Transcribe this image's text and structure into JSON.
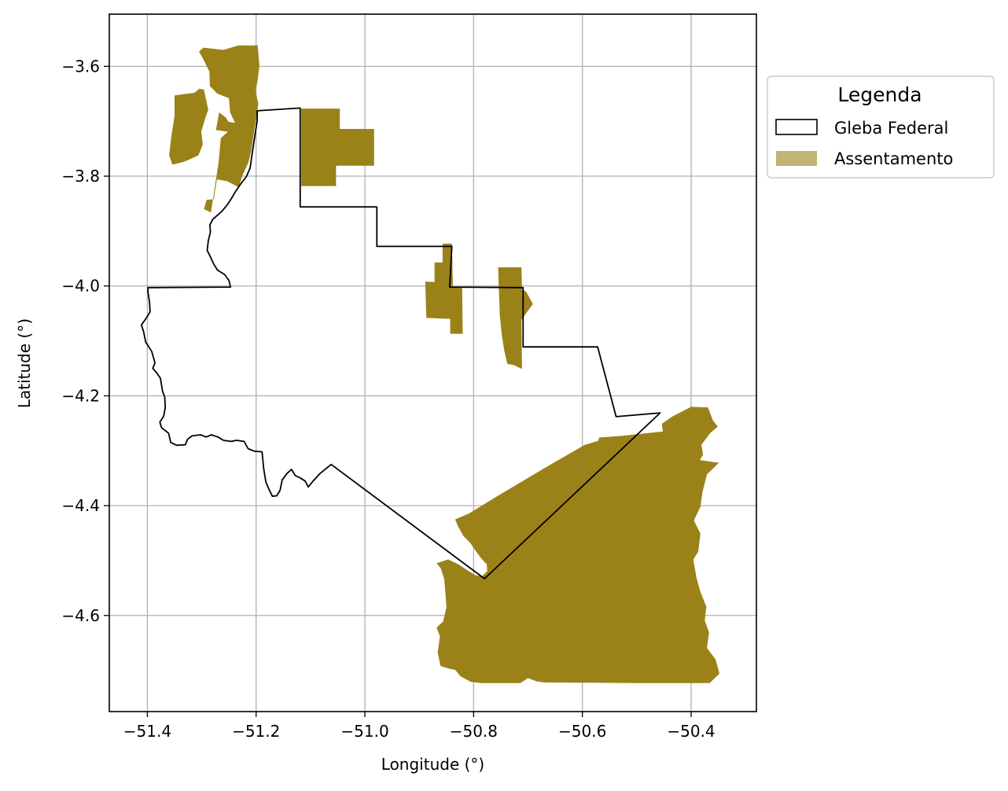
{
  "chart_data": {
    "type": "map",
    "xlabel": "Longitude (°)",
    "ylabel": "Latitude (°)",
    "xlim": [
      -51.47,
      -50.28
    ],
    "ylim": [
      -4.775,
      -3.505
    ],
    "grid": true,
    "x_ticks": [
      -51.4,
      -51.2,
      -51.0,
      -50.8,
      -50.6,
      -50.4
    ],
    "x_tick_labels": [
      "−51.4",
      "−51.2",
      "−51.0",
      "−50.8",
      "−50.6",
      "−50.4"
    ],
    "y_ticks": [
      -3.6,
      -3.8,
      -4.0,
      -4.2,
      -4.4,
      -4.6
    ],
    "y_tick_labels": [
      "−3.6",
      "−3.8",
      "−4.0",
      "−4.2",
      "−4.4",
      "−4.6"
    ],
    "legend": {
      "title": "Legenda",
      "placement": "outside-right-top",
      "entries": [
        {
          "label": "Gleba Federal",
          "style": "outline",
          "edge_color": "#000000",
          "fill_color": "none"
        },
        {
          "label": "Assentamento",
          "style": "fill",
          "fill_color": "#9a8219",
          "alpha": 0.6
        }
      ]
    },
    "layers": [
      {
        "name": "Gleba Federal",
        "style": "outline",
        "edge_color": "#000000",
        "polygons": [
          [
            [
              -51.198,
              -3.681
            ],
            [
              -51.119,
              -3.676
            ],
            [
              -51.119,
              -3.856
            ],
            [
              -50.978,
              -3.856
            ],
            [
              -50.978,
              -3.928
            ],
            [
              -50.84,
              -3.928
            ],
            [
              -50.844,
              -4.002
            ],
            [
              -50.709,
              -4.003
            ],
            [
              -50.709,
              -4.111
            ],
            [
              -50.572,
              -4.111
            ],
            [
              -50.538,
              -4.238
            ],
            [
              -50.457,
              -4.231
            ],
            [
              -50.78,
              -4.533
            ],
            [
              -51.062,
              -4.325
            ],
            [
              -51.083,
              -4.342
            ],
            [
              -51.096,
              -4.356
            ],
            [
              -51.104,
              -4.366
            ],
            [
              -51.11,
              -4.355
            ],
            [
              -51.118,
              -4.35
            ],
            [
              -51.128,
              -4.345
            ],
            [
              -51.135,
              -4.334
            ],
            [
              -51.143,
              -4.341
            ],
            [
              -51.152,
              -4.353
            ],
            [
              -51.156,
              -4.372
            ],
            [
              -51.162,
              -4.382
            ],
            [
              -51.17,
              -4.383
            ],
            [
              -51.176,
              -4.371
            ],
            [
              -51.182,
              -4.357
            ],
            [
              -51.186,
              -4.333
            ],
            [
              -51.189,
              -4.302
            ],
            [
              -51.203,
              -4.301
            ],
            [
              -51.215,
              -4.296
            ],
            [
              -51.222,
              -4.283
            ],
            [
              -51.236,
              -4.281
            ],
            [
              -51.246,
              -4.283
            ],
            [
              -51.26,
              -4.281
            ],
            [
              -51.27,
              -4.275
            ],
            [
              -51.282,
              -4.271
            ],
            [
              -51.292,
              -4.275
            ],
            [
              -51.302,
              -4.271
            ],
            [
              -51.318,
              -4.273
            ],
            [
              -51.326,
              -4.279
            ],
            [
              -51.33,
              -4.289
            ],
            [
              -51.346,
              -4.29
            ],
            [
              -51.357,
              -4.285
            ],
            [
              -51.361,
              -4.268
            ],
            [
              -51.374,
              -4.258
            ],
            [
              -51.377,
              -4.248
            ],
            [
              -51.37,
              -4.237
            ],
            [
              -51.367,
              -4.221
            ],
            [
              -51.368,
              -4.202
            ],
            [
              -51.372,
              -4.192
            ],
            [
              -51.376,
              -4.168
            ],
            [
              -51.383,
              -4.158
            ],
            [
              -51.39,
              -4.15
            ],
            [
              -51.386,
              -4.14
            ],
            [
              -51.392,
              -4.119
            ],
            [
              -51.403,
              -4.102
            ],
            [
              -51.407,
              -4.083
            ],
            [
              -51.411,
              -4.071
            ],
            [
              -51.403,
              -4.06
            ],
            [
              -51.395,
              -4.047
            ],
            [
              -51.396,
              -4.03
            ],
            [
              -51.399,
              -4.01
            ],
            [
              -51.399,
              -4.003
            ],
            [
              -51.247,
              -4.002
            ],
            [
              -51.25,
              -3.99
            ],
            [
              -51.258,
              -3.979
            ],
            [
              -51.271,
              -3.971
            ],
            [
              -51.278,
              -3.96
            ],
            [
              -51.285,
              -3.945
            ],
            [
              -51.29,
              -3.935
            ],
            [
              -51.288,
              -3.918
            ],
            [
              -51.284,
              -3.902
            ],
            [
              -51.285,
              -3.889
            ],
            [
              -51.28,
              -3.879
            ],
            [
              -51.263,
              -3.864
            ],
            [
              -51.253,
              -3.852
            ],
            [
              -51.245,
              -3.84
            ],
            [
              -51.238,
              -3.828
            ],
            [
              -51.229,
              -3.815
            ],
            [
              -51.218,
              -3.801
            ],
            [
              -51.211,
              -3.785
            ],
            [
              -51.208,
              -3.764
            ],
            [
              -51.205,
              -3.744
            ],
            [
              -51.201,
              -3.718
            ],
            [
              -51.198,
              -3.699
            ],
            [
              -51.198,
              -3.681
            ]
          ]
        ]
      },
      {
        "name": "Assentamento",
        "style": "fill",
        "fill_color": "#9a8219",
        "polygons": [
          [
            [
              -51.305,
              -3.573
            ],
            [
              -51.297,
              -3.566
            ],
            [
              -51.26,
              -3.57
            ],
            [
              -51.232,
              -3.562
            ],
            [
              -51.197,
              -3.562
            ],
            [
              -51.196,
              -3.575
            ],
            [
              -51.194,
              -3.599
            ],
            [
              -51.197,
              -3.624
            ],
            [
              -51.201,
              -3.645
            ],
            [
              -51.196,
              -3.668
            ],
            [
              -51.2,
              -3.695
            ],
            [
              -51.204,
              -3.72
            ],
            [
              -51.209,
              -3.754
            ],
            [
              -51.214,
              -3.775
            ],
            [
              -51.225,
              -3.799
            ],
            [
              -51.232,
              -3.82
            ],
            [
              -51.254,
              -3.809
            ],
            [
              -51.272,
              -3.806
            ],
            [
              -51.278,
              -3.842
            ],
            [
              -51.291,
              -3.843
            ],
            [
              -51.296,
              -3.86
            ],
            [
              -51.283,
              -3.866
            ],
            [
              -51.269,
              -3.775
            ],
            [
              -51.265,
              -3.731
            ],
            [
              -51.252,
              -3.719
            ],
            [
              -51.274,
              -3.716
            ],
            [
              -51.268,
              -3.684
            ],
            [
              -51.256,
              -3.693
            ],
            [
              -51.251,
              -3.701
            ],
            [
              -51.239,
              -3.703
            ],
            [
              -51.248,
              -3.683
            ],
            [
              -51.25,
              -3.658
            ],
            [
              -51.271,
              -3.65
            ],
            [
              -51.285,
              -3.636
            ],
            [
              -51.286,
              -3.61
            ],
            [
              -51.296,
              -3.589
            ],
            [
              -51.305,
              -3.573
            ]
          ],
          [
            [
              -51.35,
              -3.653
            ],
            [
              -51.313,
              -3.648
            ],
            [
              -51.305,
              -3.641
            ],
            [
              -51.296,
              -3.642
            ],
            [
              -51.292,
              -3.661
            ],
            [
              -51.288,
              -3.679
            ],
            [
              -51.293,
              -3.693
            ],
            [
              -51.301,
              -3.719
            ],
            [
              -51.298,
              -3.742
            ],
            [
              -51.306,
              -3.762
            ],
            [
              -51.321,
              -3.769
            ],
            [
              -51.333,
              -3.774
            ],
            [
              -51.354,
              -3.779
            ],
            [
              -51.36,
              -3.762
            ],
            [
              -51.356,
              -3.729
            ],
            [
              -51.35,
              -3.69
            ],
            [
              -51.35,
              -3.653
            ]
          ],
          [
            [
              -51.117,
              -3.677
            ],
            [
              -51.046,
              -3.677
            ],
            [
              -51.046,
              -3.714
            ],
            [
              -50.983,
              -3.714
            ],
            [
              -50.983,
              -3.781
            ],
            [
              -51.053,
              -3.781
            ],
            [
              -51.053,
              -3.818
            ],
            [
              -51.117,
              -3.818
            ],
            [
              -51.117,
              -3.677
            ]
          ],
          [
            [
              -50.857,
              -3.923
            ],
            [
              -50.84,
              -3.923
            ],
            [
              -50.838,
              -4.003
            ],
            [
              -50.821,
              -4.003
            ],
            [
              -50.82,
              -4.087
            ],
            [
              -50.843,
              -4.087
            ],
            [
              -50.843,
              -4.06
            ],
            [
              -50.887,
              -4.058
            ],
            [
              -50.889,
              -3.992
            ],
            [
              -50.872,
              -3.993
            ],
            [
              -50.872,
              -3.957
            ],
            [
              -50.857,
              -3.957
            ],
            [
              -50.857,
              -3.923
            ]
          ],
          [
            [
              -50.755,
              -3.966
            ],
            [
              -50.712,
              -3.966
            ],
            [
              -50.711,
              -4.006
            ],
            [
              -50.703,
              -4.011
            ],
            [
              -50.691,
              -4.033
            ],
            [
              -50.7,
              -4.045
            ],
            [
              -50.712,
              -4.062
            ],
            [
              -50.711,
              -4.151
            ],
            [
              -50.726,
              -4.144
            ],
            [
              -50.738,
              -4.142
            ],
            [
              -50.744,
              -4.116
            ],
            [
              -50.748,
              -4.09
            ],
            [
              -50.752,
              -4.053
            ],
            [
              -50.755,
              -3.966
            ]
          ],
          [
            [
              -50.868,
              -4.505
            ],
            [
              -50.86,
              -4.515
            ],
            [
              -50.854,
              -4.534
            ],
            [
              -50.852,
              -4.558
            ],
            [
              -50.85,
              -4.585
            ],
            [
              -50.856,
              -4.611
            ],
            [
              -50.868,
              -4.622
            ],
            [
              -50.862,
              -4.638
            ],
            [
              -50.866,
              -4.667
            ],
            [
              -50.861,
              -4.692
            ],
            [
              -50.845,
              -4.697
            ],
            [
              -50.834,
              -4.699
            ],
            [
              -50.824,
              -4.711
            ],
            [
              -50.805,
              -4.721
            ],
            [
              -50.785,
              -4.723
            ],
            [
              -50.74,
              -4.723
            ],
            [
              -50.714,
              -4.723
            ],
            [
              -50.7,
              -4.714
            ],
            [
              -50.684,
              -4.72
            ],
            [
              -50.67,
              -4.722
            ],
            [
              -50.5,
              -4.723
            ],
            [
              -50.366,
              -4.723
            ],
            [
              -50.348,
              -4.706
            ],
            [
              -50.355,
              -4.68
            ],
            [
              -50.371,
              -4.659
            ],
            [
              -50.367,
              -4.631
            ],
            [
              -50.375,
              -4.609
            ],
            [
              -50.372,
              -4.584
            ],
            [
              -50.383,
              -4.557
            ],
            [
              -50.39,
              -4.532
            ],
            [
              -50.396,
              -4.498
            ],
            [
              -50.387,
              -4.484
            ],
            [
              -50.383,
              -4.451
            ],
            [
              -50.395,
              -4.427
            ],
            [
              -50.383,
              -4.402
            ],
            [
              -50.379,
              -4.375
            ],
            [
              -50.371,
              -4.343
            ],
            [
              -50.349,
              -4.322
            ],
            [
              -50.384,
              -4.317
            ],
            [
              -50.378,
              -4.307
            ],
            [
              -50.381,
              -4.289
            ],
            [
              -50.365,
              -4.268
            ],
            [
              -50.351,
              -4.256
            ],
            [
              -50.36,
              -4.245
            ],
            [
              -50.369,
              -4.221
            ],
            [
              -50.4,
              -4.22
            ],
            [
              -50.435,
              -4.238
            ],
            [
              -50.454,
              -4.251
            ],
            [
              -50.452,
              -4.265
            ],
            [
              -50.528,
              -4.273
            ],
            [
              -50.569,
              -4.276
            ],
            [
              -50.571,
              -4.282
            ],
            [
              -50.595,
              -4.289
            ],
            [
              -50.66,
              -4.326
            ],
            [
              -50.711,
              -4.356
            ],
            [
              -50.762,
              -4.386
            ],
            [
              -50.808,
              -4.414
            ],
            [
              -50.834,
              -4.425
            ],
            [
              -50.829,
              -4.437
            ],
            [
              -50.819,
              -4.455
            ],
            [
              -50.806,
              -4.468
            ],
            [
              -50.797,
              -4.481
            ],
            [
              -50.787,
              -4.495
            ],
            [
              -50.776,
              -4.507
            ],
            [
              -50.775,
              -4.519
            ],
            [
              -50.784,
              -4.528
            ],
            [
              -50.796,
              -4.527
            ],
            [
              -50.811,
              -4.518
            ],
            [
              -50.828,
              -4.507
            ],
            [
              -50.847,
              -4.498
            ],
            [
              -50.868,
              -4.505
            ]
          ]
        ]
      }
    ]
  }
}
